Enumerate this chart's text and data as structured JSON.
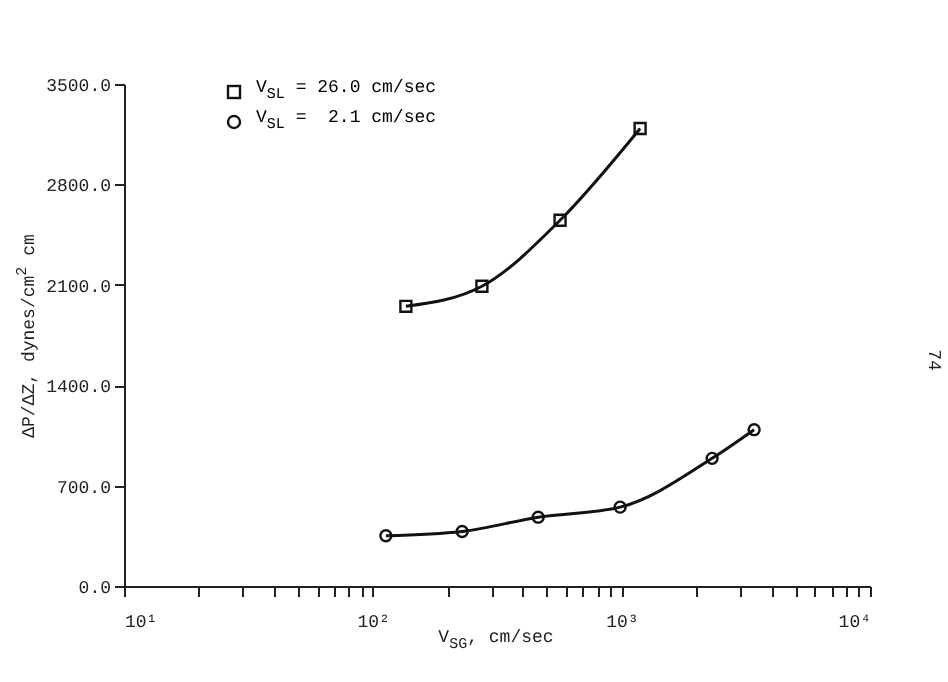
{
  "chart_data": {
    "type": "line",
    "xlabel": "V$_{SG}$, cm/sec",
    "ylabel": "ΔP/ΔZ, dynes/cm$^{2}$ cm",
    "log": "x",
    "grid": false,
    "legend": "top left",
    "line_style": "solid",
    "xlim": [
      10,
      10000
    ],
    "xticks": [
      {
        "value": 10,
        "label": "10¹"
      },
      {
        "value": 20,
        "label": null
      },
      {
        "value": 30,
        "label": null
      },
      {
        "value": 40,
        "label": null
      },
      {
        "value": 50,
        "label": null
      },
      {
        "value": 60,
        "label": null
      },
      {
        "value": 70,
        "label": null
      },
      {
        "value": 80,
        "label": null
      },
      {
        "value": 90,
        "label": null
      },
      {
        "value": 100,
        "label": "10²"
      },
      {
        "value": 200,
        "label": null
      },
      {
        "value": 300,
        "label": null
      },
      {
        "value": 400,
        "label": null
      },
      {
        "value": 500,
        "label": null
      },
      {
        "value": 600,
        "label": null
      },
      {
        "value": 700,
        "label": null
      },
      {
        "value": 800,
        "label": null
      },
      {
        "value": 900,
        "label": null
      },
      {
        "value": 1000,
        "label": "10³"
      },
      {
        "value": 2000,
        "label": null
      },
      {
        "value": 3000,
        "label": null
      },
      {
        "value": 4000,
        "label": null
      },
      {
        "value": 5000,
        "label": null
      },
      {
        "value": 6000,
        "label": null
      },
      {
        "value": 7000,
        "label": null
      },
      {
        "value": 8000,
        "label": null
      },
      {
        "value": 9000,
        "label": null
      },
      {
        "value": 10000,
        "label": "10⁴"
      }
    ],
    "ylim": [
      0,
      3500
    ],
    "yticks": [
      {
        "value": 0,
        "label": "0.0"
      },
      {
        "value": 700,
        "label": "700.0"
      },
      {
        "value": 1400,
        "label": "1400.0"
      },
      {
        "value": 2100,
        "label": "2100.0"
      },
      {
        "value": 2800,
        "label": "2800.0"
      },
      {
        "value": 3500,
        "label": "3500.0"
      }
    ],
    "series": [
      {
        "name": "V$_{SL}$ = 26.0 cm/sec",
        "color": "#111111",
        "marker": "square",
        "x": [
          136,
          275,
          567,
          1190
        ],
        "values": [
          1950,
          2090,
          2550,
          3190
        ]
      },
      {
        "name": "V$_{SL}$ =  2.1 cm/sec",
        "color": "#111111",
        "marker": "circle",
        "x": [
          113,
          229,
          463,
          989,
          2318,
          3420
        ],
        "values": [
          350,
          380,
          480,
          550,
          890,
          1090
        ]
      }
    ],
    "annotations": [
      "74"
    ]
  }
}
